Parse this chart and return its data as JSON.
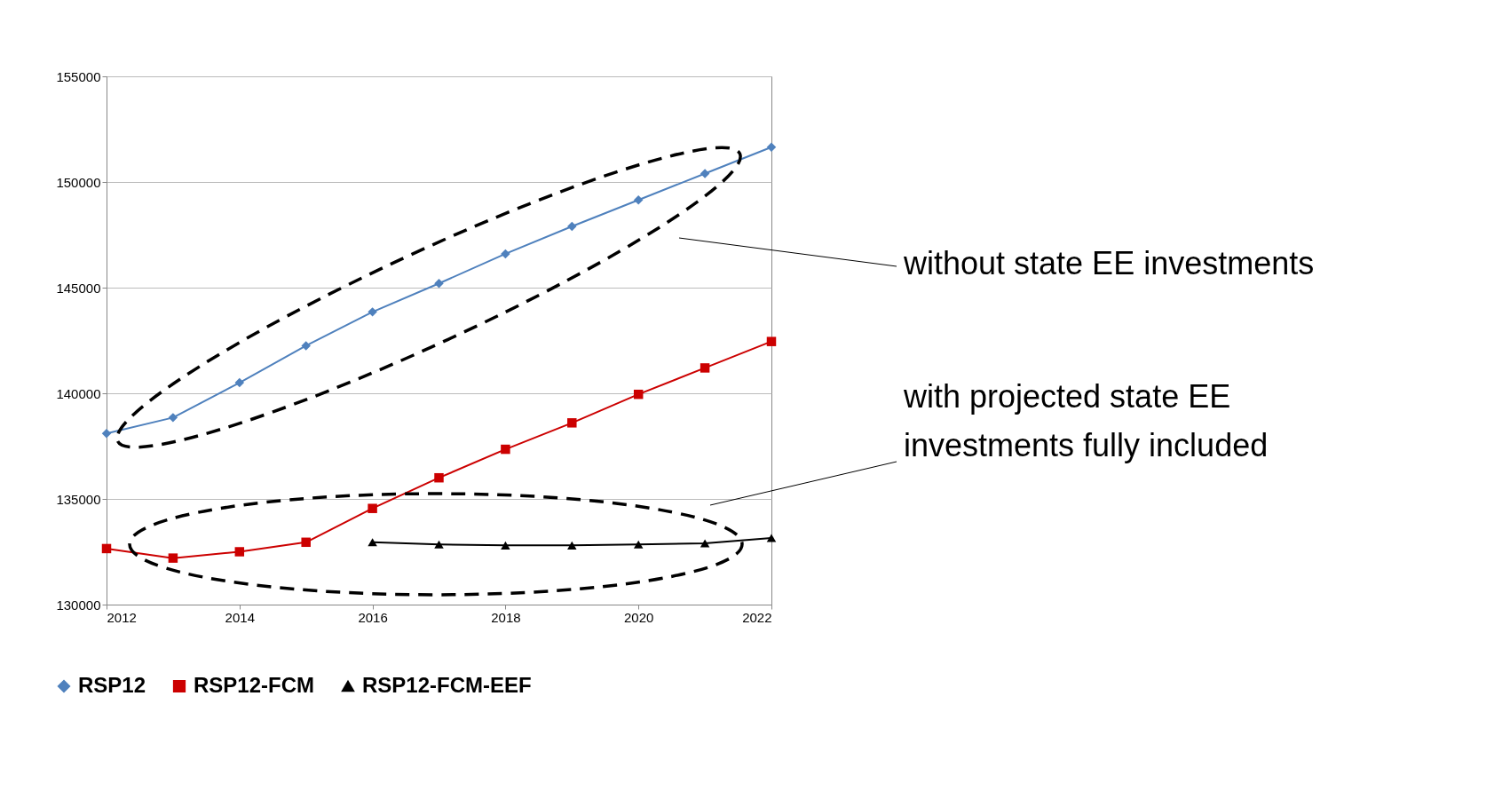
{
  "chart_data": {
    "type": "line",
    "x": [
      2012,
      2013,
      2014,
      2015,
      2016,
      2017,
      2018,
      2019,
      2020,
      2021,
      2022
    ],
    "series": [
      {
        "name": "RSP12",
        "color": "#4f81bd",
        "marker": "diamond",
        "values": [
          138100,
          138850,
          140500,
          142250,
          143850,
          145200,
          146600,
          147900,
          149150,
          150400,
          151650
        ]
      },
      {
        "name": "RSP12-FCM",
        "color": "#cc0000",
        "marker": "square",
        "values": [
          132650,
          132200,
          132500,
          132950,
          134550,
          136000,
          137350,
          138600,
          139950,
          141200,
          142450
        ]
      },
      {
        "name": "RSP12-FCM-EEF",
        "color": "#000000",
        "marker": "triangle",
        "values": [
          null,
          null,
          null,
          null,
          132950,
          132850,
          132800,
          132800,
          132850,
          132900,
          133150
        ]
      }
    ],
    "xlim": [
      2012,
      2022
    ],
    "xticks": [
      2012,
      2014,
      2016,
      2018,
      2020,
      2022
    ],
    "ylim": [
      130000,
      155000
    ],
    "yticks": [
      130000,
      135000,
      140000,
      145000,
      150000,
      155000
    ],
    "grid": "y",
    "legend": "bottom",
    "line_style": "solid",
    "annotations": [
      "without state EE investments",
      "with projected state EE\ninvestments fully included"
    ]
  }
}
